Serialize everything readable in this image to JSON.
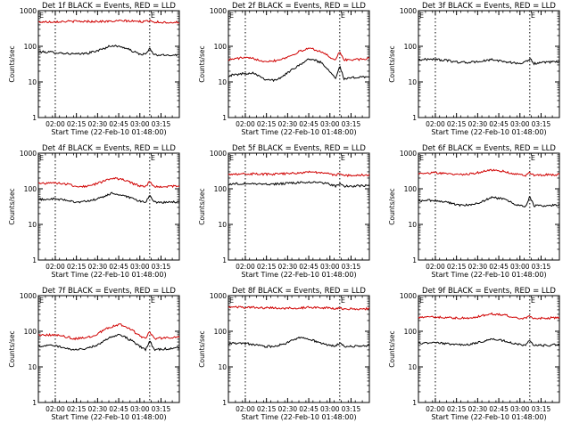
{
  "figure": {
    "xlabel": "Start Time (22-Feb-10 01:48:00)",
    "ylabel": "Counts/sec",
    "x_ticks": [
      "02:00",
      "02:15",
      "02:30",
      "02:45",
      "03:00",
      "03:15"
    ],
    "y_ticks": [
      "1",
      "10",
      "100",
      "1000"
    ],
    "marker_label": "E",
    "colors": {
      "events": "#000000",
      "lld": "#d00000",
      "axis": "#000000",
      "background": "#ffffff"
    }
  },
  "chart_data": [
    {
      "type": "line",
      "title": "Det 1f BLACK = Events, RED = LLD",
      "xlabel": "Start Time (22-Feb-10 01:48:00)",
      "ylabel": "Counts/sec",
      "x_unit": "minutes since 01:48:00",
      "xlim": [
        0,
        100
      ],
      "ylim": [
        1,
        1000
      ],
      "yscale": "log",
      "marker_lines": [
        12,
        79
      ],
      "events_markers": [
        0,
        79
      ],
      "series": [
        {
          "name": "Events",
          "color": "#000000",
          "x": [
            0,
            10,
            20,
            28,
            36,
            44,
            52,
            60,
            68,
            72,
            76,
            79,
            82,
            88,
            94,
            100
          ],
          "values": [
            70,
            68,
            63,
            60,
            65,
            80,
            105,
            95,
            70,
            60,
            60,
            85,
            58,
            56,
            57,
            58
          ]
        },
        {
          "name": "LLD",
          "color": "#d00000",
          "x": [
            0,
            10,
            20,
            30,
            40,
            50,
            60,
            70,
            76,
            79,
            82,
            90,
            100
          ],
          "values": [
            480,
            490,
            500,
            500,
            500,
            500,
            520,
            500,
            490,
            540,
            480,
            470,
            470
          ]
        }
      ]
    },
    {
      "type": "line",
      "title": "Det 2f BLACK = Events, RED = LLD",
      "xlabel": "Start Time (22-Feb-10 01:48:00)",
      "ylabel": "Counts/sec",
      "x_unit": "minutes since 01:48:00",
      "xlim": [
        0,
        100
      ],
      "ylim": [
        1,
        1000
      ],
      "yscale": "log",
      "marker_lines": [
        12,
        79
      ],
      "events_markers": [
        0,
        79
      ],
      "series": [
        {
          "name": "Events",
          "color": "#000000",
          "x": [
            0,
            10,
            18,
            26,
            34,
            42,
            50,
            58,
            66,
            72,
            76,
            79,
            82,
            88,
            94,
            100
          ],
          "values": [
            15,
            17,
            18,
            12,
            11,
            18,
            30,
            45,
            35,
            20,
            13,
            28,
            12,
            13,
            14,
            14
          ]
        },
        {
          "name": "LLD",
          "color": "#d00000",
          "x": [
            0,
            10,
            18,
            26,
            34,
            42,
            50,
            58,
            66,
            72,
            76,
            79,
            82,
            88,
            94,
            100
          ],
          "values": [
            42,
            48,
            45,
            38,
            40,
            50,
            70,
            90,
            70,
            50,
            42,
            70,
            42,
            42,
            43,
            45
          ]
        }
      ]
    },
    {
      "type": "line",
      "title": "Det 3f BLACK = Events, RED = LLD",
      "xlabel": "Start Time (22-Feb-10 01:48:00)",
      "ylabel": "Counts/sec",
      "x_unit": "minutes since 01:48:00",
      "xlim": [
        0,
        100
      ],
      "ylim": [
        1,
        1000
      ],
      "yscale": "log",
      "marker_lines": [
        12,
        79
      ],
      "events_markers": [
        0,
        79
      ],
      "series": [
        {
          "name": "Events",
          "color": "#000000",
          "x": [
            0,
            10,
            20,
            28,
            36,
            44,
            52,
            60,
            68,
            74,
            79,
            82,
            90,
            100
          ],
          "values": [
            42,
            44,
            40,
            36,
            35,
            38,
            42,
            38,
            34,
            33,
            45,
            33,
            35,
            37
          ]
        }
      ]
    },
    {
      "type": "line",
      "title": "Det 4f BLACK = Events, RED = LLD",
      "xlabel": "Start Time (22-Feb-10 01:48:00)",
      "ylabel": "Counts/sec",
      "x_unit": "minutes since 01:48:00",
      "xlim": [
        0,
        100
      ],
      "ylim": [
        1,
        1000
      ],
      "yscale": "log",
      "marker_lines": [
        12,
        79
      ],
      "events_markers": [
        0,
        79
      ],
      "series": [
        {
          "name": "Events",
          "color": "#000000",
          "x": [
            0,
            10,
            20,
            28,
            36,
            44,
            52,
            60,
            68,
            72,
            76,
            79,
            82,
            90,
            100
          ],
          "values": [
            50,
            52,
            48,
            42,
            45,
            55,
            75,
            65,
            50,
            45,
            42,
            65,
            42,
            42,
            42
          ]
        },
        {
          "name": "LLD",
          "color": "#d00000",
          "x": [
            0,
            10,
            20,
            28,
            36,
            44,
            52,
            60,
            68,
            72,
            76,
            79,
            82,
            90,
            100
          ],
          "values": [
            140,
            150,
            135,
            115,
            120,
            150,
            200,
            180,
            135,
            120,
            115,
            160,
            115,
            115,
            120
          ]
        }
      ]
    },
    {
      "type": "line",
      "title": "Det 5f BLACK = Events, RED = LLD",
      "xlabel": "Start Time (22-Feb-10 01:48:00)",
      "ylabel": "Counts/sec",
      "x_unit": "minutes since 01:48:00",
      "xlim": [
        0,
        100
      ],
      "ylim": [
        1,
        1000
      ],
      "yscale": "log",
      "marker_lines": [
        12,
        79
      ],
      "events_markers": [
        0,
        79
      ],
      "series": [
        {
          "name": "Events",
          "color": "#000000",
          "x": [
            0,
            10,
            20,
            30,
            40,
            50,
            60,
            70,
            76,
            79,
            82,
            90,
            100
          ],
          "values": [
            135,
            140,
            138,
            135,
            140,
            148,
            155,
            140,
            120,
            140,
            118,
            120,
            122
          ]
        },
        {
          "name": "LLD",
          "color": "#d00000",
          "x": [
            0,
            10,
            20,
            30,
            40,
            50,
            60,
            70,
            76,
            79,
            82,
            90,
            100
          ],
          "values": [
            260,
            265,
            262,
            255,
            265,
            280,
            300,
            270,
            240,
            270,
            235,
            240,
            245
          ]
        }
      ]
    },
    {
      "type": "line",
      "title": "Det 6f BLACK = Events, RED = LLD",
      "xlabel": "Start Time (22-Feb-10 01:48:00)",
      "ylabel": "Counts/sec",
      "x_unit": "minutes since 01:48:00",
      "xlim": [
        0,
        100
      ],
      "ylim": [
        1,
        1000
      ],
      "yscale": "log",
      "marker_lines": [
        12,
        79
      ],
      "events_markers": [
        0,
        79
      ],
      "series": [
        {
          "name": "Events",
          "color": "#000000",
          "x": [
            0,
            10,
            20,
            28,
            36,
            44,
            52,
            60,
            68,
            72,
            76,
            79,
            82,
            90,
            100
          ],
          "values": [
            45,
            48,
            42,
            35,
            35,
            42,
            58,
            52,
            38,
            33,
            32,
            60,
            33,
            34,
            35
          ]
        },
        {
          "name": "LLD",
          "color": "#d00000",
          "x": [
            0,
            10,
            20,
            28,
            36,
            44,
            52,
            60,
            68,
            72,
            76,
            79,
            82,
            90,
            100
          ],
          "values": [
            270,
            280,
            270,
            255,
            260,
            290,
            340,
            310,
            260,
            245,
            240,
            280,
            240,
            245,
            250
          ]
        }
      ]
    },
    {
      "type": "line",
      "title": "Det 7f BLACK = Events, RED = LLD",
      "xlabel": "Start Time (22-Feb-10 01:48:00)",
      "ylabel": "Counts/sec",
      "x_unit": "minutes since 01:48:00",
      "xlim": [
        0,
        100
      ],
      "ylim": [
        1,
        1000
      ],
      "yscale": "log",
      "marker_lines": [
        12,
        79
      ],
      "events_markers": [
        0,
        79
      ],
      "series": [
        {
          "name": "Events",
          "color": "#000000",
          "x": [
            0,
            10,
            18,
            26,
            34,
            42,
            50,
            58,
            66,
            72,
            76,
            79,
            82,
            90,
            100
          ],
          "values": [
            38,
            40,
            35,
            30,
            32,
            42,
            65,
            80,
            55,
            38,
            30,
            55,
            30,
            32,
            35
          ]
        },
        {
          "name": "LLD",
          "color": "#d00000",
          "x": [
            0,
            10,
            18,
            26,
            34,
            42,
            50,
            58,
            66,
            72,
            76,
            79,
            82,
            90,
            100
          ],
          "values": [
            75,
            80,
            72,
            62,
            65,
            85,
            130,
            155,
            110,
            75,
            62,
            100,
            62,
            65,
            70
          ]
        }
      ]
    },
    {
      "type": "line",
      "title": "Det 8f BLACK = Events, RED = LLD",
      "xlabel": "Start Time (22-Feb-10 01:48:00)",
      "ylabel": "Counts/sec",
      "x_unit": "minutes since 01:48:00",
      "xlim": [
        0,
        100
      ],
      "ylim": [
        1,
        1000
      ],
      "yscale": "log",
      "marker_lines": [
        12,
        79
      ],
      "events_markers": [
        0,
        79
      ],
      "series": [
        {
          "name": "Events",
          "color": "#000000",
          "x": [
            0,
            10,
            18,
            26,
            34,
            42,
            50,
            58,
            66,
            72,
            76,
            79,
            82,
            90,
            100
          ],
          "values": [
            45,
            47,
            42,
            37,
            38,
            48,
            68,
            60,
            45,
            40,
            38,
            48,
            37,
            38,
            40
          ]
        },
        {
          "name": "LLD",
          "color": "#d00000",
          "x": [
            0,
            10,
            20,
            30,
            40,
            50,
            60,
            70,
            76,
            79,
            82,
            90,
            100
          ],
          "values": [
            480,
            470,
            460,
            450,
            440,
            450,
            470,
            450,
            430,
            460,
            420,
            420,
            430
          ]
        }
      ]
    },
    {
      "type": "line",
      "title": "Det 9f BLACK = Events, RED = LLD",
      "xlabel": "Start Time (22-Feb-10 01:48:00)",
      "ylabel": "Counts/sec",
      "x_unit": "minutes since 01:48:00",
      "xlim": [
        0,
        100
      ],
      "ylim": [
        1,
        1000
      ],
      "yscale": "log",
      "marker_lines": [
        12,
        79
      ],
      "events_markers": [
        0,
        79
      ],
      "series": [
        {
          "name": "Events",
          "color": "#000000",
          "x": [
            0,
            10,
            20,
            28,
            36,
            44,
            52,
            60,
            68,
            72,
            76,
            79,
            82,
            90,
            100
          ],
          "values": [
            45,
            48,
            45,
            42,
            43,
            50,
            60,
            55,
            45,
            42,
            40,
            55,
            40,
            40,
            42
          ]
        },
        {
          "name": "LLD",
          "color": "#d00000",
          "x": [
            0,
            10,
            20,
            28,
            36,
            44,
            52,
            60,
            68,
            72,
            76,
            79,
            82,
            90,
            100
          ],
          "values": [
            240,
            250,
            245,
            235,
            240,
            265,
            310,
            290,
            250,
            235,
            230,
            270,
            230,
            235,
            240
          ]
        }
      ]
    }
  ]
}
